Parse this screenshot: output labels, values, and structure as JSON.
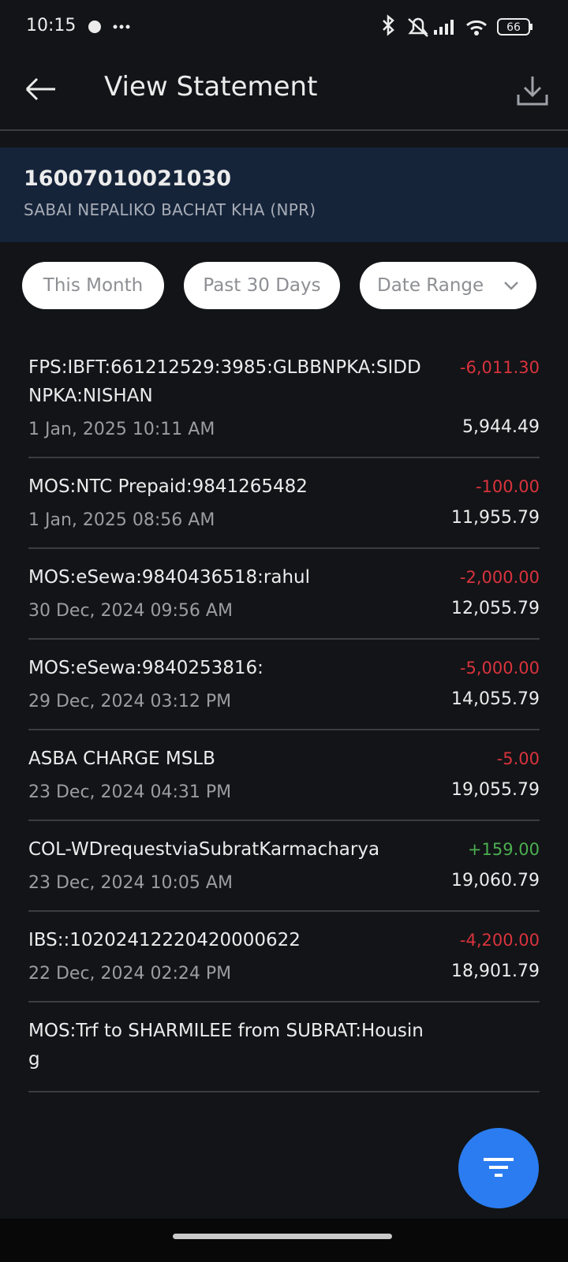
{
  "status_bar": {
    "time": "10:15",
    "battery": "66"
  },
  "header": {
    "title": "View Statement"
  },
  "account": {
    "number": "16007010021030",
    "name": "SABAI NEPALIKO BACHAT KHA (NPR)"
  },
  "filters": [
    "This Month",
    "Past 30 Days",
    "Date Range"
  ],
  "transactions": [
    {
      "description": "FPS:IBFT:661212529:3985:GLBBNPKA:SIDDNPKA:NISHAN",
      "date": "1 Jan, 2025 10:11 AM",
      "amount": "-6,011.30",
      "balance": "5,944.49"
    },
    {
      "description": "MOS:NTC Prepaid:9841265482",
      "date": "1 Jan, 2025 08:56 AM",
      "amount": "-100.00",
      "balance": "11,955.79"
    },
    {
      "description": "MOS:eSewa:9840436518:rahul",
      "date": "30 Dec, 2024 09:56 AM",
      "amount": "-2,000.00",
      "balance": "12,055.79"
    },
    {
      "description": "MOS:eSewa:9840253816:",
      "date": "29 Dec, 2024 03:12 PM",
      "amount": "-5,000.00",
      "balance": "14,055.79"
    },
    {
      "description": "ASBA CHARGE MSLB",
      "date": "23 Dec, 2024 04:31 PM",
      "amount": "-5.00",
      "balance": "19,055.79"
    },
    {
      "description": "COL-WDrequestviaSubratKarmacharya",
      "date": "23 Dec, 2024 10:05 AM",
      "amount": "+159.00",
      "balance": "19,060.79"
    },
    {
      "description": "IBS::10202412220420000622",
      "date": "22 Dec, 2024 02:24 PM",
      "amount": "-4,200.00",
      "balance": "18,901.79"
    },
    {
      "description": "MOS:Trf to SHARMILEE from SUBRAT:Housing"
    }
  ]
}
